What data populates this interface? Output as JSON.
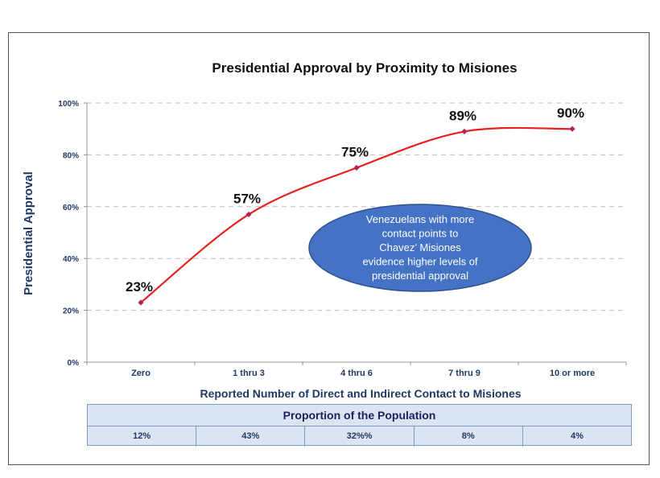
{
  "chart_data": {
    "type": "line",
    "title": "Presidential Approval by Proximity to Misiones",
    "xlabel": "Reported Number of Direct and Indirect Contact to Misiones",
    "ylabel": "Presidential Approval",
    "categories": [
      "Zero",
      "1 thru 3",
      "4 thru 6",
      "7 thru 9",
      "10 or more"
    ],
    "values": [
      23,
      57,
      75,
      89,
      90
    ],
    "data_labels": [
      "23%",
      "57%",
      "75%",
      "89%",
      "90%"
    ],
    "ylim": [
      0,
      100
    ],
    "yticks": [
      0,
      20,
      40,
      60,
      80,
      100
    ],
    "ytick_labels": [
      "0%",
      "20%",
      "40%",
      "60%",
      "80%",
      "100%"
    ],
    "grid": true,
    "line_color": "#e8201f",
    "marker_color": "#b0244f",
    "annotation": {
      "lines": [
        "Venezuelans with more",
        "contact points to",
        "Chavez’ Misiones",
        "evidence higher levels of",
        "presidential approval"
      ],
      "fill_color": "#4472c4"
    }
  },
  "population_table": {
    "header": "Proportion of the Population",
    "cells": [
      "12%",
      "43%",
      "32%%",
      "8%",
      "4%"
    ]
  }
}
